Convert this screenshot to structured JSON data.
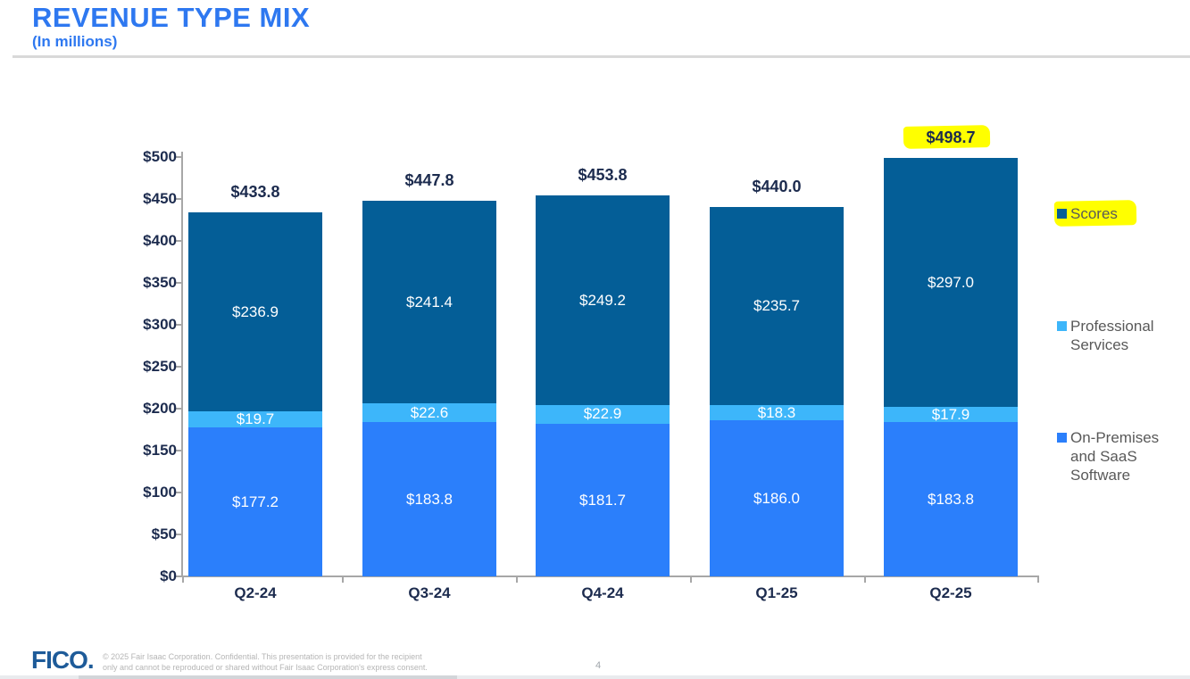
{
  "header": {
    "title": "REVENUE TYPE MIX",
    "subtitle": "(In millions)",
    "title_color": "#2e78f0"
  },
  "chart_data": {
    "type": "bar",
    "stacked": true,
    "title": "REVENUE TYPE MIX (In millions)",
    "xlabel": "",
    "ylabel": "",
    "ylim": [
      0,
      500
    ],
    "ytick_step": 50,
    "ytick_labels": [
      "$0",
      "$50",
      "$100",
      "$150",
      "$200",
      "$250",
      "$300",
      "$350",
      "$400",
      "$450",
      "$500"
    ],
    "grid": false,
    "legend_position": "right",
    "categories": [
      "Q2-24",
      "Q3-24",
      "Q4-24",
      "Q1-25",
      "Q2-25"
    ],
    "series": [
      {
        "name": "On-Premises and SaaS Software",
        "color": "#2b7ffb",
        "values": [
          177.2,
          183.8,
          181.7,
          186.0,
          183.8
        ],
        "labels": [
          "$177.2",
          "$183.8",
          "$181.7",
          "$186.0",
          "$183.8"
        ]
      },
      {
        "name": "Professional Services",
        "color": "#3db6fa",
        "values": [
          19.7,
          22.6,
          22.9,
          18.3,
          17.9
        ],
        "labels": [
          "$19.7",
          "$22.6",
          "$22.9",
          "$18.3",
          "$17.9"
        ]
      },
      {
        "name": "Scores",
        "color": "#045e97",
        "values": [
          236.9,
          241.4,
          249.2,
          235.7,
          297.0
        ],
        "labels": [
          "$236.9",
          "$241.4",
          "$249.2",
          "$235.7",
          "$297.0"
        ]
      }
    ],
    "totals": [
      433.8,
      447.8,
      453.8,
      440.0,
      498.7
    ],
    "total_labels": [
      "$433.8",
      "$447.8",
      "$453.8",
      "$440.0",
      "$498.7"
    ],
    "highlighted_total_index": 4,
    "highlight_color": "#ffff00"
  },
  "legend": {
    "items": [
      {
        "label": "Scores",
        "color": "#045e97",
        "highlighted": true
      },
      {
        "label": "Professional Services",
        "color": "#3db6fa",
        "highlighted": false
      },
      {
        "label": "On-Premises and SaaS Software",
        "color": "#2b7ffb",
        "highlighted": false
      }
    ]
  },
  "footer": {
    "logo_text": "FICO.",
    "copyright_line1": "© 2025 Fair Isaac Corporation. Confidential. This presentation is provided for the recipient",
    "copyright_line2": "only and cannot be reproduced or shared without Fair Isaac Corporation's express consent.",
    "page_number": "4"
  }
}
